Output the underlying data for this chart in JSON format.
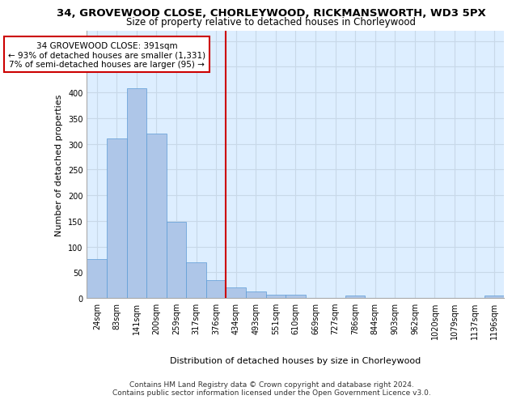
{
  "title_line1": "34, GROVEWOOD CLOSE, CHORLEYWOOD, RICKMANSWORTH, WD3 5PX",
  "title_line2": "Size of property relative to detached houses in Chorleywood",
  "xlabel": "Distribution of detached houses by size in Chorleywood",
  "ylabel": "Number of detached properties",
  "bar_labels": [
    "24sqm",
    "83sqm",
    "141sqm",
    "200sqm",
    "259sqm",
    "317sqm",
    "376sqm",
    "434sqm",
    "493sqm",
    "551sqm",
    "610sqm",
    "669sqm",
    "727sqm",
    "786sqm",
    "844sqm",
    "903sqm",
    "962sqm",
    "1020sqm",
    "1079sqm",
    "1137sqm",
    "1196sqm"
  ],
  "bar_values": [
    75,
    311,
    408,
    320,
    148,
    70,
    35,
    20,
    12,
    6,
    7,
    0,
    0,
    5,
    0,
    0,
    0,
    0,
    0,
    0,
    5
  ],
  "bar_color": "#aec6e8",
  "bar_edge_color": "#5b9bd5",
  "vline_x": 6.5,
  "vline_color": "#cc0000",
  "annotation_text": "34 GROVEWOOD CLOSE: 391sqm\n← 93% of detached houses are smaller (1,331)\n7% of semi-detached houses are larger (95) →",
  "annotation_box_edge_color": "#cc0000",
  "annotation_box_facecolor": "white",
  "ylim": [
    0,
    520
  ],
  "yticks": [
    0,
    50,
    100,
    150,
    200,
    250,
    300,
    350,
    400,
    450,
    500
  ],
  "grid_color": "#c8d8e8",
  "background_color": "#ddeeff",
  "footer_line1": "Contains HM Land Registry data © Crown copyright and database right 2024.",
  "footer_line2": "Contains public sector information licensed under the Open Government Licence v3.0.",
  "title_fontsize": 9.5,
  "subtitle_fontsize": 8.5,
  "axis_label_fontsize": 8,
  "tick_fontsize": 7,
  "annotation_fontsize": 7.5,
  "footer_fontsize": 6.5
}
